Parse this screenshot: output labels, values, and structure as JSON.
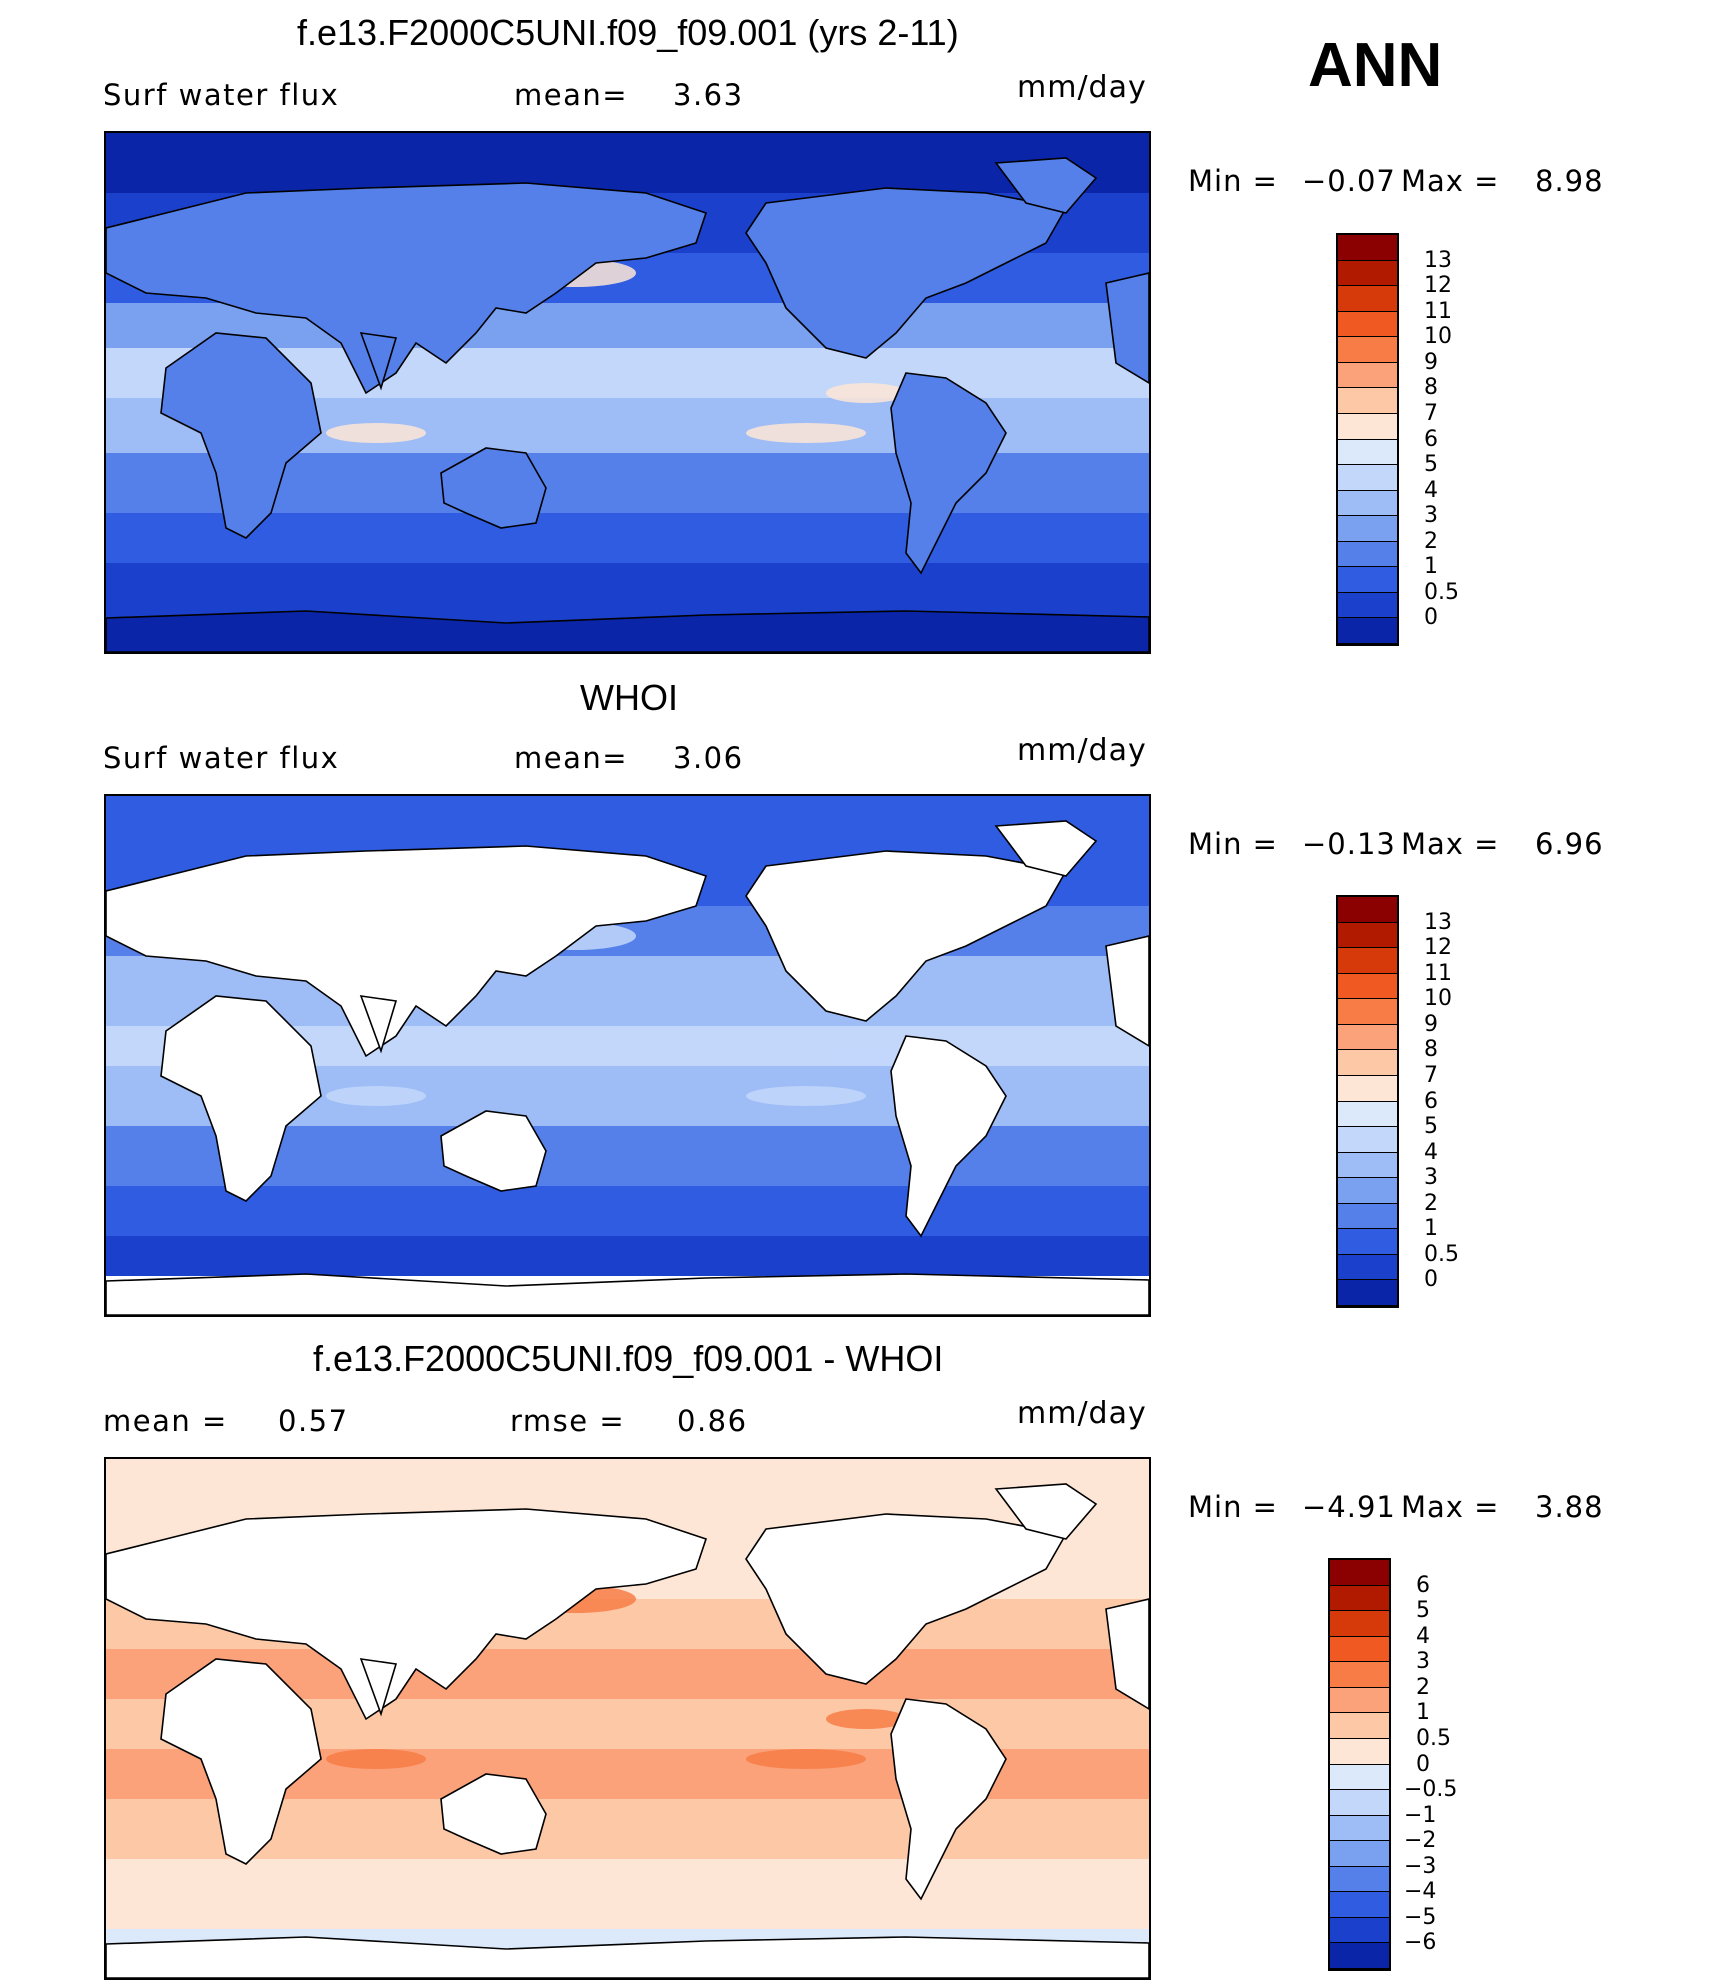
{
  "season": "ANN",
  "panels": [
    {
      "title": "f.e13.F2000C5UNI.f09_f09.001 (yrs 2-11)",
      "left_label": "Surf water flux",
      "middle_label": "mean=",
      "middle_value": "3.63",
      "units": "mm/day",
      "min_label": "Min =",
      "min_value": "−0.07",
      "max_label": "Max =",
      "max_value": "8.98",
      "colorbar_levels": [
        "13",
        "12",
        "11",
        "10",
        "9",
        "8",
        "7",
        "6",
        "5",
        "4",
        "3",
        "2",
        "1",
        "0.5",
        "0"
      ],
      "colorbar_colors": [
        "#8b0000",
        "#b21a00",
        "#d63a0b",
        "#f05a22",
        "#f77c45",
        "#fba27a",
        "#fdc8a6",
        "#fde6d6",
        "#dbe9fb",
        "#c2d7fa",
        "#9ebcf6",
        "#7aa0f0",
        "#5580ea",
        "#2f5ce0",
        "#1a40cc",
        "#0a25a8"
      ],
      "map_theme": "model"
    },
    {
      "title": "WHOI",
      "left_label": "Surf water flux",
      "middle_label": "mean=",
      "middle_value": "3.06",
      "units": "mm/day",
      "min_label": "Min =",
      "min_value": "−0.13",
      "max_label": "Max =",
      "max_value": "6.96",
      "colorbar_levels": [
        "13",
        "12",
        "11",
        "10",
        "9",
        "8",
        "7",
        "6",
        "5",
        "4",
        "3",
        "2",
        "1",
        "0.5",
        "0"
      ],
      "colorbar_colors": [
        "#8b0000",
        "#b21a00",
        "#d63a0b",
        "#f05a22",
        "#f77c45",
        "#fba27a",
        "#fdc8a6",
        "#fde6d6",
        "#dbe9fb",
        "#c2d7fa",
        "#9ebcf6",
        "#7aa0f0",
        "#5580ea",
        "#2f5ce0",
        "#1a40cc",
        "#0a25a8"
      ],
      "map_theme": "obs"
    },
    {
      "title": "f.e13.F2000C5UNI.f09_f09.001 - WHOI",
      "left_label": "mean =",
      "left_value": "0.57",
      "middle_label": "rmse =",
      "middle_value": "0.86",
      "units": "mm/day",
      "min_label": "Min =",
      "min_value": "−4.91",
      "max_label": "Max =",
      "max_value": "3.88",
      "colorbar_levels": [
        "6",
        "5",
        "4",
        "3",
        "2",
        "1",
        "0.5",
        "0",
        "−0.5",
        "−1",
        "−2",
        "−3",
        "−4",
        "−5",
        "−6"
      ],
      "colorbar_colors": [
        "#8b0000",
        "#b21a00",
        "#d63a0b",
        "#f05a22",
        "#f77c45",
        "#fba27a",
        "#fdc8a6",
        "#fde6d6",
        "#dbe9fb",
        "#c2d7fa",
        "#9ebcf6",
        "#7aa0f0",
        "#5580ea",
        "#2f5ce0",
        "#1a40cc",
        "#0a25a8"
      ],
      "map_theme": "diff"
    }
  ],
  "chart_data": [
    {
      "type": "heatmap",
      "title": "f.e13.F2000C5UNI.f09_f09.001 (yrs 2-11)",
      "variable": "Surf water flux",
      "units": "mm/day",
      "mean": 3.63,
      "min": -0.07,
      "max": 8.98,
      "contour_levels": [
        0,
        0.5,
        1,
        2,
        3,
        4,
        5,
        6,
        7,
        8,
        9,
        10,
        11,
        12,
        13
      ]
    },
    {
      "type": "heatmap",
      "title": "WHOI",
      "variable": "Surf water flux",
      "units": "mm/day",
      "mean": 3.06,
      "min": -0.13,
      "max": 6.96,
      "contour_levels": [
        0,
        0.5,
        1,
        2,
        3,
        4,
        5,
        6,
        7,
        8,
        9,
        10,
        11,
        12,
        13
      ]
    },
    {
      "type": "heatmap",
      "title": "f.e13.F2000C5UNI.f09_f09.001 - WHOI",
      "units": "mm/day",
      "mean": 0.57,
      "rmse": 0.86,
      "min": -4.91,
      "max": 3.88,
      "contour_levels": [
        -6,
        -5,
        -4,
        -3,
        -2,
        -1,
        -0.5,
        0,
        0.5,
        1,
        2,
        3,
        4,
        5,
        6
      ]
    }
  ]
}
